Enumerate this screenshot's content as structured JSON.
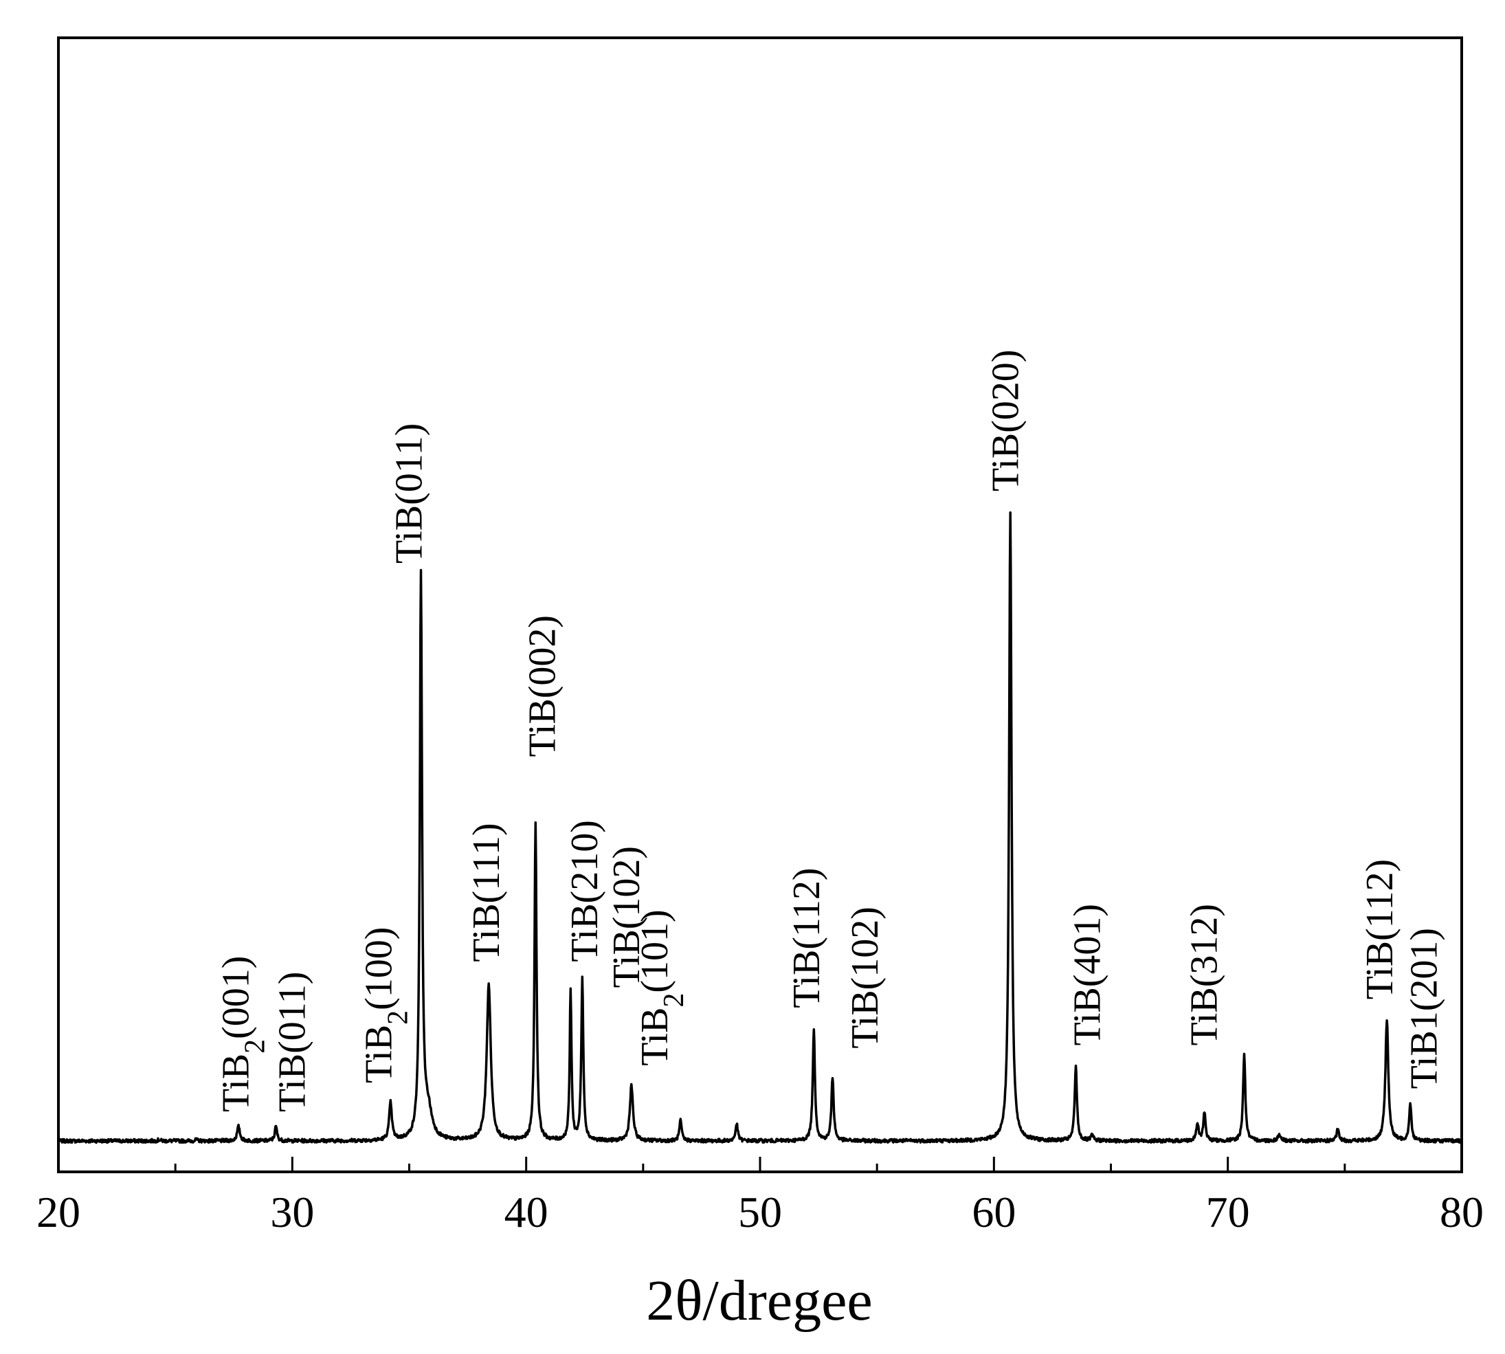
{
  "chart_data": {
    "type": "line",
    "title": "",
    "xlabel": "2θ/dregee",
    "ylabel": "",
    "xlim": [
      20,
      80
    ],
    "ylim": [
      0,
      1.0
    ],
    "x_ticks": [
      "20",
      "30",
      "40",
      "50",
      "60",
      "70",
      "80"
    ],
    "y_ticks": [],
    "grid": false,
    "legend": "none",
    "line_color": "#000000",
    "baseline": 0.03,
    "peaks": [
      {
        "x": 24.3,
        "y": 0.002,
        "w": 0.1
      },
      {
        "x": 25.9,
        "y": 0.002,
        "w": 0.1
      },
      {
        "x": 27.7,
        "y": 0.025,
        "w": 0.12
      },
      {
        "x": 29.3,
        "y": 0.025,
        "w": 0.1
      },
      {
        "x": 34.2,
        "y": 0.065,
        "w": 0.12
      },
      {
        "x": 35.5,
        "y": 0.97,
        "w": 0.1
      },
      {
        "x": 35.8,
        "y": 0.05,
        "w": 0.35
      },
      {
        "x": 38.4,
        "y": 0.27,
        "w": 0.18
      },
      {
        "x": 40.4,
        "y": 0.55,
        "w": 0.09
      },
      {
        "x": 41.9,
        "y": 0.26,
        "w": 0.08
      },
      {
        "x": 42.4,
        "y": 0.28,
        "w": 0.09
      },
      {
        "x": 44.5,
        "y": 0.095,
        "w": 0.14
      },
      {
        "x": 46.6,
        "y": 0.035,
        "w": 0.1
      },
      {
        "x": 49.0,
        "y": 0.03,
        "w": 0.1
      },
      {
        "x": 52.3,
        "y": 0.19,
        "w": 0.1
      },
      {
        "x": 53.1,
        "y": 0.11,
        "w": 0.1
      },
      {
        "x": 60.7,
        "y": 1.09,
        "w": 0.11
      },
      {
        "x": 63.5,
        "y": 0.13,
        "w": 0.1
      },
      {
        "x": 64.2,
        "y": 0.01,
        "w": 0.1
      },
      {
        "x": 68.7,
        "y": 0.03,
        "w": 0.1
      },
      {
        "x": 69.0,
        "y": 0.05,
        "w": 0.1
      },
      {
        "x": 70.7,
        "y": 0.15,
        "w": 0.1
      },
      {
        "x": 72.2,
        "y": 0.01,
        "w": 0.15
      },
      {
        "x": 74.7,
        "y": 0.02,
        "w": 0.1
      },
      {
        "x": 76.8,
        "y": 0.21,
        "w": 0.13
      },
      {
        "x": 77.8,
        "y": 0.065,
        "w": 0.1
      }
    ],
    "annotations": [
      {
        "id": "tib2-001",
        "prefix": "TiB",
        "sub": "2",
        "suffix": "(001)",
        "x": 27.6,
        "y": 0.05
      },
      {
        "id": "tib-011-a",
        "prefix": "TiB(011)",
        "sub": "",
        "suffix": "",
        "x": 30.0,
        "y": 0.05
      },
      {
        "id": "tib2-100",
        "prefix": "TiB",
        "sub": "2",
        "suffix": "(100)",
        "x": 33.7,
        "y": 0.1
      },
      {
        "id": "tib-011-b",
        "prefix": "TiB(011)",
        "sub": "",
        "suffix": "",
        "x": 35.0,
        "y": 1.0
      },
      {
        "id": "tib-111",
        "prefix": "TiB(111)",
        "sub": "",
        "suffix": "",
        "x": 38.3,
        "y": 0.31
      },
      {
        "id": "tib-002",
        "prefix": "TiB(002)",
        "sub": "",
        "suffix": "",
        "x": 40.7,
        "y": 0.665
      },
      {
        "id": "tib-210",
        "prefix": "TiB(210)",
        "sub": "",
        "suffix": "",
        "x": 42.5,
        "y": 0.31
      },
      {
        "id": "tib-102-a",
        "prefix": "TiB(102)",
        "sub": "",
        "suffix": "",
        "x": 44.3,
        "y": 0.265
      },
      {
        "id": "tib2-101",
        "prefix": "TiB",
        "sub": "2",
        "suffix": "(101)",
        "x": 45.5,
        "y": 0.13
      },
      {
        "id": "tib-112-a",
        "prefix": "TiB(112)",
        "sub": "",
        "suffix": "",
        "x": 52.0,
        "y": 0.23
      },
      {
        "id": "tib-102-b",
        "prefix": "TiB(102)",
        "sub": "",
        "suffix": "",
        "x": 54.5,
        "y": 0.16
      },
      {
        "id": "tib-020",
        "prefix": "TiB(020)",
        "sub": "",
        "suffix": "",
        "x": 60.5,
        "y": 1.125
      },
      {
        "id": "tib-401",
        "prefix": "TiB(401)",
        "sub": "",
        "suffix": "",
        "x": 64.0,
        "y": 0.165
      },
      {
        "id": "tib-312",
        "prefix": "TiB(312)",
        "sub": "",
        "suffix": "",
        "x": 69.0,
        "y": 0.165
      },
      {
        "id": "tib-112-b",
        "prefix": "TiB(112)",
        "sub": "",
        "suffix": "",
        "x": 76.5,
        "y": 0.245
      },
      {
        "id": "tib1-201",
        "prefix": "TiB1(201)",
        "sub": "",
        "suffix": "",
        "x": 78.4,
        "y": 0.09
      }
    ]
  }
}
